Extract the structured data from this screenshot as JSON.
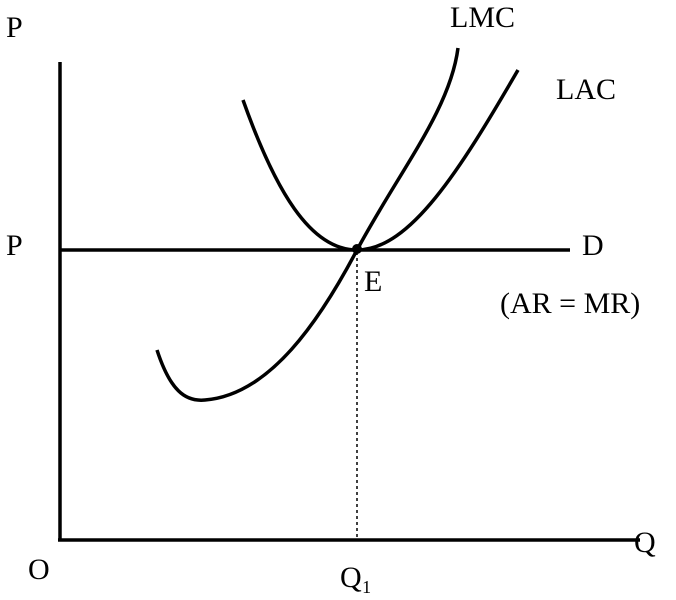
{
  "axes": {
    "y_label": "P",
    "x_label": "Q",
    "origin": "O"
  },
  "curves": {
    "lmc": "LMC",
    "lac": "LAC"
  },
  "demand": {
    "price_label": "P",
    "label": "D",
    "note": "(AR = MR)"
  },
  "equilibrium": {
    "point": "E",
    "quantity": "Q₁"
  }
}
